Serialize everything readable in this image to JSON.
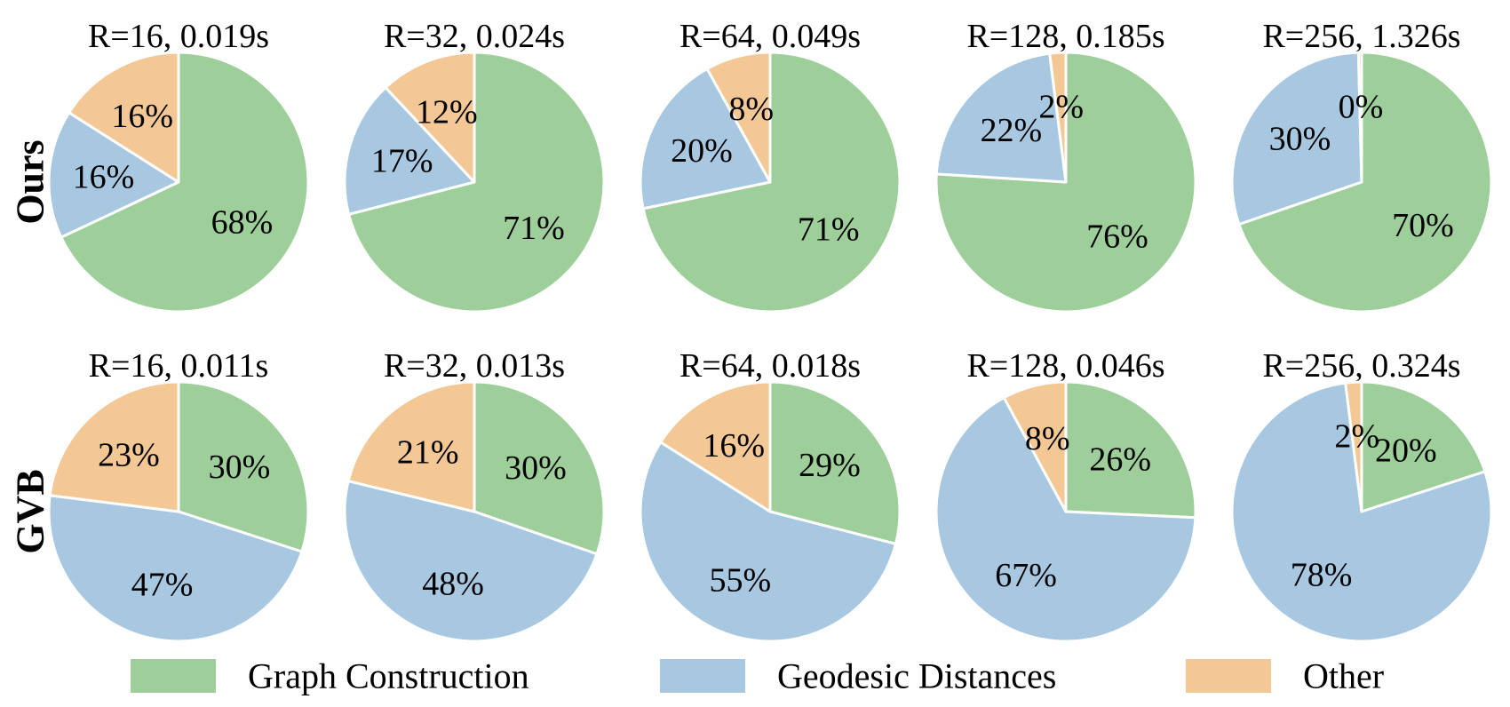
{
  "chart_data": {
    "type": "pie",
    "categories": [
      "Graph Construction",
      "Geodesic Distances",
      "Other"
    ],
    "colors": {
      "Graph Construction": "#9ecf9b",
      "Geodesic Distances": "#a8c8e2",
      "Other": "#f3c894"
    },
    "slice_order": "clockwise from top: Graph Construction, Geodesic Distances, Other",
    "legend": {
      "placement": "bottom",
      "entries": [
        "Graph Construction",
        "Geodesic Distances",
        "Other"
      ]
    },
    "rows": [
      {
        "label": "Ours",
        "pies": [
          {
            "title": "R=16, 0.019s",
            "values": [
              68,
              16,
              16
            ],
            "labels": [
              "68%",
              "16%",
              "16%"
            ]
          },
          {
            "title": "R=32, 0.024s",
            "values": [
              71,
              17,
              12
            ],
            "labels": [
              "71%",
              "17%",
              "12%"
            ]
          },
          {
            "title": "R=64, 0.049s",
            "values": [
              71,
              20,
              8
            ],
            "labels": [
              "71%",
              "20%",
              "8%"
            ]
          },
          {
            "title": "R=128, 0.185s",
            "values": [
              76,
              22,
              2
            ],
            "labels": [
              "76%",
              "22%",
              "2%"
            ]
          },
          {
            "title": "R=256, 1.326s",
            "values": [
              70,
              30,
              0.4
            ],
            "labels": [
              "70%",
              "30%",
              "0%"
            ]
          }
        ]
      },
      {
        "label": "GVB",
        "pies": [
          {
            "title": "R=16, 0.011s",
            "values": [
              30,
              47,
              23
            ],
            "labels": [
              "30%",
              "47%",
              "23%"
            ]
          },
          {
            "title": "R=32, 0.013s",
            "values": [
              30,
              48,
              21
            ],
            "labels": [
              "30%",
              "48%",
              "21%"
            ]
          },
          {
            "title": "R=64, 0.018s",
            "values": [
              29,
              55,
              16
            ],
            "labels": [
              "29%",
              "55%",
              "16%"
            ]
          },
          {
            "title": "R=128, 0.046s",
            "values": [
              26,
              67,
              8
            ],
            "labels": [
              "26%",
              "67%",
              "8%"
            ]
          },
          {
            "title": "R=256, 0.324s",
            "values": [
              20,
              78,
              2
            ],
            "labels": [
              "20%",
              "78%",
              "2%"
            ]
          }
        ]
      }
    ]
  }
}
